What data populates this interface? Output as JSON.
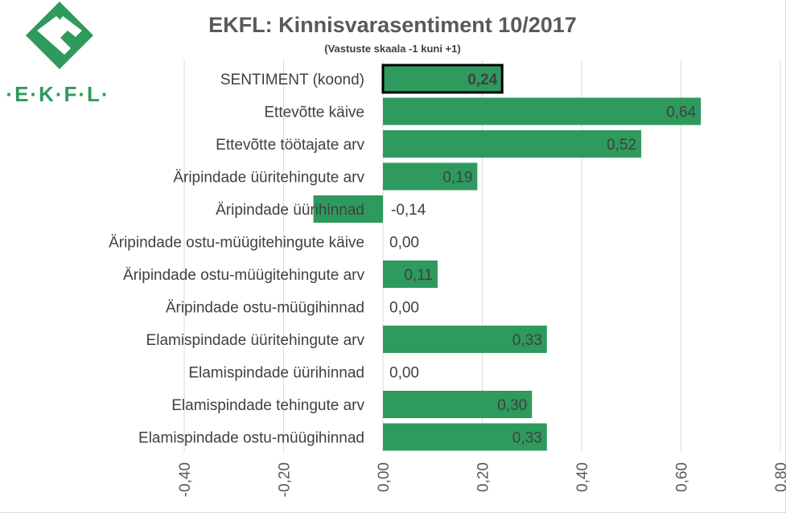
{
  "logo": {
    "text": "·E·K·F·L·",
    "color": "#2e9a5e"
  },
  "chart_data": {
    "type": "bar",
    "orientation": "horizontal",
    "title": "EKFL: Kinnisvarasentiment 10/2017",
    "subtitle": "(Vastuste skaala -1 kuni +1)",
    "categories": [
      "SENTIMENT (koond)",
      "Ettevõtte käive",
      "Ettevõtte töötajate arv",
      "Äripindade üüritehingute arv",
      "Äripindade üürihinnad",
      "Äripindade ostu-müügitehingute käive",
      "Äripindade ostu-müügitehingute arv",
      "Äripindade ostu-müügihinnad",
      "Elamispindade üüritehingute arv",
      "Elamispindade üürihinnad",
      "Elamispindade tehingute arv",
      "Elamispindade ostu-müügihinnad"
    ],
    "values": [
      0.24,
      0.64,
      0.52,
      0.19,
      -0.14,
      0.0,
      0.11,
      0.0,
      0.33,
      0.0,
      0.3,
      0.33
    ],
    "value_labels": [
      "0,24",
      "0,64",
      "0,52",
      "0,19",
      "-0,14",
      "0,00",
      "0,11",
      "0,00",
      "0,33",
      "0,00",
      "0,30",
      "0,33"
    ],
    "highlighted_index": 0,
    "xlim": [
      -0.4,
      0.8
    ],
    "xticks": [
      "-0,40",
      "-0,20",
      "0,00",
      "0,20",
      "0,40",
      "0,60",
      "0,80"
    ],
    "xtick_values": [
      -0.4,
      -0.2,
      0.0,
      0.2,
      0.4,
      0.6,
      0.8
    ],
    "grid": "vertical",
    "bar_color": "#2e9a5e",
    "highlight_border_color": "#000000",
    "grid_color": "#d9d9d9"
  }
}
